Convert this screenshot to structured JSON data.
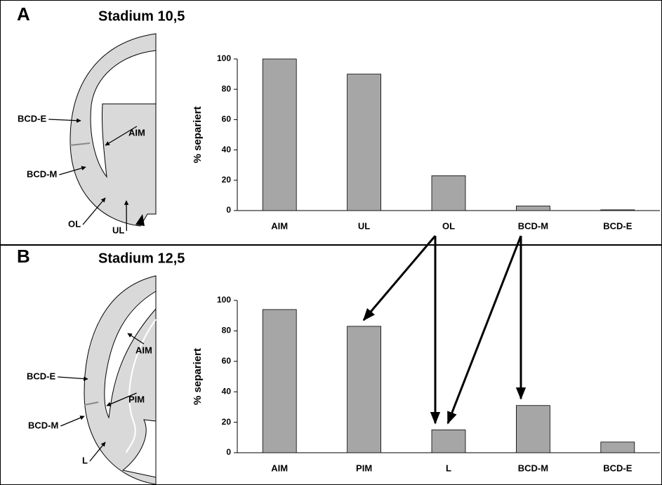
{
  "chart_data": [
    {
      "type": "bar",
      "panel": "A",
      "title": "Stadium 10,5",
      "ylabel": "% separiert",
      "categories": [
        "AIM",
        "UL",
        "OL",
        "BCD-M",
        "BCD-E"
      ],
      "values": [
        100,
        90,
        23,
        3,
        0.5
      ],
      "color": "#a6a6a6",
      "ylim": [
        0,
        100
      ],
      "yticks": [
        0,
        20,
        40,
        60,
        80,
        100
      ],
      "diagram_labels": [
        "BCD-E",
        "AIM",
        "BCD-M",
        "OL",
        "UL"
      ]
    },
    {
      "type": "bar",
      "panel": "B",
      "title": "Stadium 12,5",
      "ylabel": "% separiert",
      "categories": [
        "AIM",
        "PIM",
        "L",
        "BCD-M",
        "BCD-E"
      ],
      "values": [
        94,
        83,
        15,
        31,
        7
      ],
      "color": "#a6a6a6",
      "ylim": [
        0,
        100
      ],
      "yticks": [
        0,
        20,
        40,
        60,
        80,
        100
      ],
      "diagram_labels": [
        "BCD-E",
        "AIM",
        "PIM",
        "BCD-M",
        "L"
      ]
    }
  ]
}
